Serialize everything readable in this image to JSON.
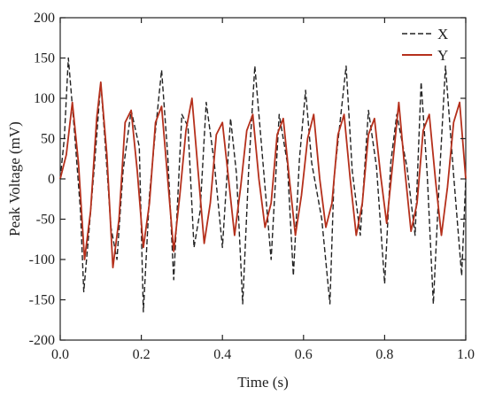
{
  "chart_data": {
    "type": "line",
    "xlabel": "Time (s)",
    "ylabel": "Peak Voltage (mV)",
    "xlim": [
      0,
      1
    ],
    "ylim": [
      -200,
      200
    ],
    "xticks": [
      0.0,
      0.2,
      0.4,
      0.6,
      0.8,
      1.0
    ],
    "xtick_labels": [
      "0.0",
      "0.2",
      "0.4",
      "0.6",
      "0.8",
      "1.0"
    ],
    "yticks": [
      -200,
      -150,
      -100,
      -50,
      0,
      50,
      100,
      150,
      200
    ],
    "ytick_labels": [
      "-200",
      "-150",
      "-100",
      "-50",
      "0",
      "50",
      "100",
      "150",
      "200"
    ],
    "grid": false,
    "legend_position": "top-right",
    "series": [
      {
        "name": "X",
        "color": "#222222",
        "style": "dashed",
        "x": [
          0.0,
          0.01,
          0.02,
          0.035,
          0.05,
          0.058,
          0.07,
          0.085,
          0.1,
          0.11,
          0.125,
          0.14,
          0.155,
          0.175,
          0.195,
          0.205,
          0.22,
          0.235,
          0.25,
          0.265,
          0.28,
          0.3,
          0.315,
          0.33,
          0.345,
          0.36,
          0.38,
          0.4,
          0.42,
          0.435,
          0.45,
          0.465,
          0.48,
          0.5,
          0.52,
          0.54,
          0.56,
          0.575,
          0.59,
          0.605,
          0.62,
          0.645,
          0.665,
          0.675,
          0.69,
          0.705,
          0.72,
          0.74,
          0.76,
          0.78,
          0.8,
          0.815,
          0.83,
          0.855,
          0.875,
          0.89,
          0.905,
          0.92,
          0.935,
          0.95,
          0.97,
          0.99,
          1.0
        ],
        "y": [
          0,
          50,
          150,
          60,
          -40,
          -140,
          -70,
          20,
          120,
          50,
          -60,
          -100,
          10,
          85,
          40,
          -165,
          -20,
          60,
          135,
          30,
          -125,
          80,
          65,
          -85,
          -40,
          95,
          20,
          -85,
          75,
          5,
          -155,
          15,
          140,
          20,
          -100,
          80,
          20,
          -120,
          25,
          110,
          20,
          -50,
          -155,
          0,
          70,
          140,
          10,
          -70,
          85,
          15,
          -130,
          20,
          80,
          15,
          -70,
          120,
          5,
          -155,
          0,
          140,
          5,
          -120,
          0
        ]
      },
      {
        "name": "Y",
        "color": "#b5301c",
        "style": "solid",
        "x": [
          0.0,
          0.015,
          0.03,
          0.045,
          0.06,
          0.075,
          0.09,
          0.1,
          0.115,
          0.13,
          0.145,
          0.16,
          0.175,
          0.19,
          0.205,
          0.22,
          0.235,
          0.25,
          0.265,
          0.28,
          0.295,
          0.31,
          0.325,
          0.34,
          0.355,
          0.37,
          0.385,
          0.4,
          0.415,
          0.43,
          0.445,
          0.46,
          0.475,
          0.49,
          0.505,
          0.52,
          0.535,
          0.55,
          0.565,
          0.58,
          0.595,
          0.61,
          0.625,
          0.64,
          0.655,
          0.67,
          0.685,
          0.7,
          0.715,
          0.73,
          0.745,
          0.76,
          0.775,
          0.79,
          0.805,
          0.82,
          0.835,
          0.85,
          0.865,
          0.88,
          0.895,
          0.91,
          0.925,
          0.94,
          0.955,
          0.97,
          0.985,
          1.0
        ],
        "y": [
          0,
          30,
          95,
          20,
          -100,
          -40,
          75,
          120,
          30,
          -110,
          -50,
          70,
          85,
          10,
          -85,
          -30,
          70,
          90,
          0,
          -90,
          -20,
          60,
          100,
          10,
          -80,
          -30,
          55,
          70,
          0,
          -70,
          -10,
          60,
          80,
          0,
          -60,
          -30,
          55,
          75,
          0,
          -70,
          -20,
          50,
          80,
          0,
          -60,
          -30,
          55,
          80,
          0,
          -70,
          -30,
          55,
          75,
          5,
          -55,
          20,
          95,
          10,
          -65,
          -30,
          60,
          80,
          0,
          -70,
          -10,
          70,
          95,
          0
        ]
      }
    ]
  }
}
